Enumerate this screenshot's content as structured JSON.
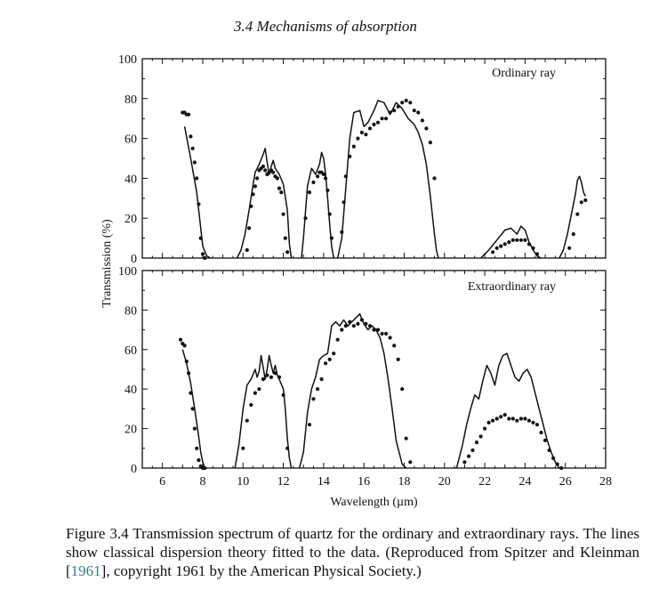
{
  "header": {
    "title": "3.4 Mechanisms of absorption"
  },
  "chart_data": [
    {
      "type": "line",
      "title": "",
      "panel_label": "Ordinary ray",
      "xlabel": "Wavelength (µm)",
      "ylabel": "Transmission (%)",
      "xlim": [
        5,
        28
      ],
      "ylim": [
        0,
        100
      ],
      "xticks": [
        6,
        8,
        10,
        12,
        14,
        16,
        18,
        20,
        22,
        24,
        26,
        28
      ],
      "yticks": [
        0,
        20,
        40,
        60,
        80,
        100
      ],
      "grid": false,
      "series": [
        {
          "kind": "line",
          "segments": [
            {
              "x": [
                7.1,
                7.4,
                7.7,
                7.9,
                8.0,
                8.2,
                8.4
              ],
              "y": [
                66,
                50,
                33,
                15,
                6,
                1,
                0
              ]
            },
            {
              "x": [
                9.7,
                9.9,
                10.1,
                10.3,
                10.5,
                10.6,
                10.8,
                11.0,
                11.1,
                11.2,
                11.3,
                11.4,
                11.5,
                11.6,
                11.8,
                12.0,
                12.2,
                12.3,
                12.4
              ],
              "y": [
                0,
                4,
                12,
                24,
                37,
                43,
                47,
                52,
                55,
                48,
                42,
                46,
                49,
                45,
                42,
                37,
                24,
                7,
                0
              ]
            },
            {
              "x": [
                12.9,
                13.0,
                13.2,
                13.4,
                13.6,
                13.8,
                13.9,
                14.0,
                14.1,
                14.2,
                14.3,
                14.4,
                14.5
              ],
              "y": [
                0,
                10,
                36,
                45,
                42,
                47,
                53,
                50,
                42,
                30,
                17,
                6,
                0
              ]
            },
            {
              "x": [
                14.7,
                14.9,
                15.1,
                15.3,
                15.5,
                15.8,
                16.0,
                16.2,
                16.5,
                16.7,
                17.0,
                17.3,
                17.6,
                17.9,
                18.2,
                18.5,
                18.7,
                18.9,
                19.1,
                19.3,
                19.5,
                19.6,
                19.7
              ],
              "y": [
                0,
                10,
                35,
                60,
                73,
                74,
                66,
                68,
                74,
                79,
                78,
                72,
                78,
                75,
                70,
                67,
                63,
                57,
                47,
                31,
                12,
                4,
                0
              ]
            },
            {
              "x": [
                21.8,
                22.2,
                22.6,
                23.0,
                23.3,
                23.6,
                23.8,
                24.0,
                24.2,
                24.4,
                24.6,
                24.8
              ],
              "y": [
                0,
                4,
                9,
                14,
                15,
                12,
                16,
                14,
                8,
                4,
                1,
                0
              ]
            },
            {
              "x": [
                25.7,
                25.9,
                26.1,
                26.3,
                26.5,
                26.6,
                26.7,
                26.8,
                26.9,
                27.0
              ],
              "y": [
                0,
                4,
                12,
                22,
                32,
                39,
                41,
                38,
                33,
                31
              ]
            }
          ]
        },
        {
          "kind": "points",
          "x": [
            7.0,
            7.1,
            7.2,
            7.3,
            7.4,
            7.5,
            7.6,
            7.7,
            7.8,
            7.9,
            8.0,
            8.1,
            10.2,
            10.3,
            10.4,
            10.5,
            10.6,
            10.7,
            10.8,
            10.9,
            11.0,
            11.1,
            11.2,
            11.3,
            11.4,
            11.5,
            11.6,
            11.7,
            11.8,
            11.9,
            12.0,
            12.1,
            12.2,
            13.1,
            13.3,
            13.5,
            13.7,
            13.8,
            13.9,
            14.0,
            14.1,
            14.2,
            14.3,
            14.4,
            14.9,
            15.0,
            15.1,
            15.3,
            15.5,
            15.7,
            15.9,
            16.1,
            16.3,
            16.5,
            16.7,
            16.9,
            17.1,
            17.3,
            17.5,
            17.7,
            17.9,
            18.1,
            18.3,
            18.5,
            18.7,
            18.9,
            19.1,
            19.3,
            19.5,
            22.4,
            22.6,
            22.8,
            23.0,
            23.2,
            23.4,
            23.6,
            23.8,
            24.0,
            24.2,
            24.4,
            24.6,
            26.2,
            26.4,
            26.6,
            26.8,
            27.0
          ],
          "y": [
            73,
            73,
            72,
            72,
            61,
            55,
            48,
            40,
            27,
            10,
            2,
            0,
            4,
            15,
            26,
            32,
            36,
            40,
            44,
            45,
            46,
            44,
            42,
            43,
            44,
            43,
            41,
            40,
            35,
            33,
            22,
            10,
            3,
            20,
            33,
            38,
            41,
            43,
            43,
            42,
            40,
            34,
            22,
            10,
            13,
            28,
            41,
            51,
            56,
            60,
            63,
            62,
            65,
            67,
            68,
            70,
            70,
            73,
            74,
            76,
            78,
            79,
            78,
            74,
            73,
            69,
            65,
            58,
            40,
            3,
            5,
            6,
            7,
            8,
            9,
            9,
            9,
            9,
            7,
            5,
            2,
            5,
            12,
            22,
            28,
            29
          ]
        }
      ]
    },
    {
      "type": "line",
      "title": "",
      "panel_label": "Extraordinary ray",
      "xlabel": "Wavelength (µm)",
      "ylabel": "Transmission (%)",
      "xlim": [
        5,
        28
      ],
      "ylim": [
        0,
        100
      ],
      "xticks": [
        6,
        8,
        10,
        12,
        14,
        16,
        18,
        20,
        22,
        24,
        26,
        28
      ],
      "yticks": [
        0,
        20,
        40,
        60,
        80,
        100
      ],
      "grid": false,
      "series": [
        {
          "kind": "line",
          "segments": [
            {
              "x": [
                7.0,
                7.2,
                7.4,
                7.6,
                7.8,
                7.9,
                8.0,
                8.1
              ],
              "y": [
                60,
                53,
                43,
                30,
                16,
                8,
                3,
                0
              ]
            },
            {
              "x": [
                9.6,
                9.8,
                10.0,
                10.2,
                10.4,
                10.6,
                10.7,
                10.8,
                10.9,
                11.0,
                11.1,
                11.2,
                11.3,
                11.4,
                11.5,
                11.6,
                11.7,
                11.8,
                12.0,
                12.1,
                12.2,
                12.3,
                12.4
              ],
              "y": [
                0,
                12,
                30,
                42,
                45,
                50,
                46,
                49,
                57,
                51,
                45,
                50,
                57,
                52,
                48,
                52,
                47,
                45,
                40,
                30,
                15,
                5,
                0
              ]
            },
            {
              "x": [
                12.8,
                13.0,
                13.2,
                13.4,
                13.6,
                13.8,
                14.0,
                14.2,
                14.4,
                14.6,
                14.8,
                15.0,
                15.2,
                15.4,
                15.6,
                15.8,
                16.0,
                16.2,
                16.4,
                16.6,
                16.8,
                17.0,
                17.2,
                17.4,
                17.6,
                17.8,
                17.9,
                18.0,
                18.1
              ],
              "y": [
                0,
                8,
                28,
                40,
                46,
                55,
                57,
                58,
                72,
                74,
                72,
                75,
                72,
                74,
                76,
                78,
                73,
                70,
                72,
                70,
                66,
                58,
                45,
                30,
                14,
                6,
                2,
                1,
                0
              ]
            },
            {
              "x": [
                20.6,
                20.9,
                21.1,
                21.3,
                21.5,
                21.7,
                21.9,
                22.1,
                22.3,
                22.5,
                22.7,
                22.9,
                23.1,
                23.3,
                23.5,
                23.7,
                23.9,
                24.1,
                24.3,
                24.5,
                24.7,
                24.9,
                25.1,
                25.3,
                25.5,
                25.7
              ],
              "y": [
                0,
                12,
                22,
                30,
                37,
                35,
                44,
                52,
                48,
                42,
                52,
                57,
                58,
                52,
                46,
                44,
                48,
                50,
                46,
                38,
                30,
                22,
                14,
                8,
                3,
                0
              ]
            }
          ]
        },
        {
          "kind": "points",
          "x": [
            6.9,
            7.0,
            7.1,
            7.2,
            7.3,
            7.4,
            7.5,
            7.6,
            7.7,
            7.8,
            7.9,
            8.0,
            8.1,
            10.0,
            10.2,
            10.4,
            10.6,
            10.8,
            11.0,
            11.2,
            11.4,
            11.6,
            11.8,
            12.0,
            12.2,
            13.3,
            13.5,
            13.7,
            13.9,
            14.1,
            14.3,
            14.5,
            14.7,
            14.9,
            15.1,
            15.3,
            15.5,
            15.7,
            15.9,
            16.1,
            16.3,
            16.5,
            16.7,
            16.9,
            17.1,
            17.3,
            17.5,
            17.7,
            17.9,
            18.1,
            18.3,
            21.0,
            21.2,
            21.4,
            21.6,
            21.8,
            22.0,
            22.2,
            22.4,
            22.6,
            22.8,
            23.0,
            23.2,
            23.4,
            23.6,
            23.8,
            24.0,
            24.2,
            24.4,
            24.6,
            24.8,
            25.0,
            25.2,
            25.4,
            25.6,
            25.8
          ],
          "y": [
            65,
            63,
            62,
            54,
            48,
            38,
            30,
            20,
            10,
            4,
            1,
            0,
            0,
            10,
            24,
            32,
            38,
            40,
            45,
            47,
            46,
            48,
            46,
            37,
            10,
            22,
            35,
            40,
            45,
            53,
            55,
            58,
            65,
            70,
            72,
            74,
            72,
            73,
            75,
            73,
            72,
            70,
            70,
            68,
            68,
            66,
            62,
            55,
            40,
            15,
            3,
            3,
            6,
            9,
            13,
            16,
            20,
            23,
            24,
            25,
            26,
            27,
            25,
            25,
            24,
            25,
            25,
            24,
            23,
            22,
            18,
            14,
            9,
            5,
            2,
            0
          ]
        }
      ]
    }
  ],
  "caption": {
    "part1": "Figure 3.4 Transmission spectrum of quartz for the ordinary and extraordinary rays. The lines show classical dispersion theory fitted to the data. (Reproduced from Spitzer and Kleinman [",
    "citation": "1961",
    "part2": "], copyright 1961 by the American Physical Society.)"
  }
}
